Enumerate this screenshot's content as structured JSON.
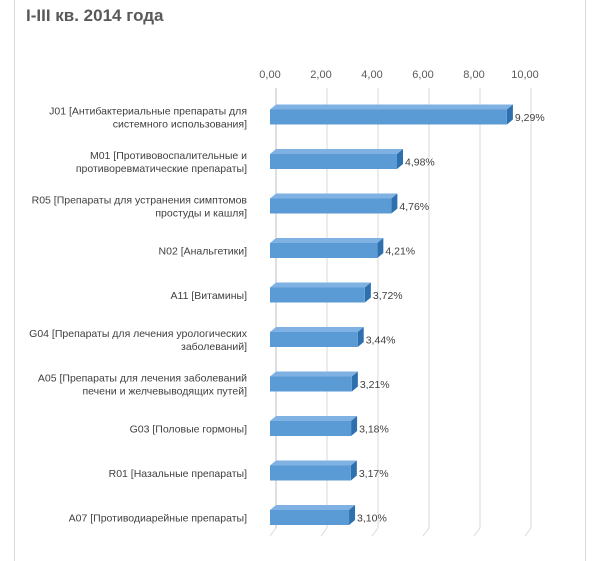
{
  "chart_data": {
    "type": "bar",
    "orientation": "horizontal",
    "title": "I-III кв. 2014 года",
    "xlim": [
      0,
      10
    ],
    "x_ticks": [
      "0,00",
      "2,00",
      "4,00",
      "6,00",
      "8,00",
      "10,00"
    ],
    "grid": true,
    "categories": [
      [
        "J01 [Антибактериальные препараты для",
        "системного использования]"
      ],
      [
        "M01 [Противовоспалительные и",
        "противоревматические препараты]"
      ],
      [
        "R05 [Препараты для устранения симптомов",
        "простуды и кашля]"
      ],
      [
        "N02 [Анальгетики]"
      ],
      [
        "A11 [Витамины]"
      ],
      [
        "G04 [Препараты для лечения урологических",
        "заболеваний]"
      ],
      [
        "A05 [Препараты для лечения заболеваний",
        "печени и желчевыводящих путей]"
      ],
      [
        "G03 [Половые гормоны]"
      ],
      [
        "R01 [Назальные препараты]"
      ],
      [
        "A07 [Противодиарейные препараты]"
      ]
    ],
    "values": [
      9.29,
      4.98,
      4.76,
      4.21,
      3.72,
      3.44,
      3.21,
      3.18,
      3.17,
      3.1
    ],
    "data_labels": [
      "9,29%",
      "4,98%",
      "4,76%",
      "4,21%",
      "3,72%",
      "3,44%",
      "3,21%",
      "3,18%",
      "3,17%",
      "3,10%"
    ],
    "colors": {
      "bar_front": "#5b9bd5",
      "bar_top": "#7fb2e3",
      "bar_side": "#2e6fae",
      "grid": "#d9d9d9"
    }
  }
}
